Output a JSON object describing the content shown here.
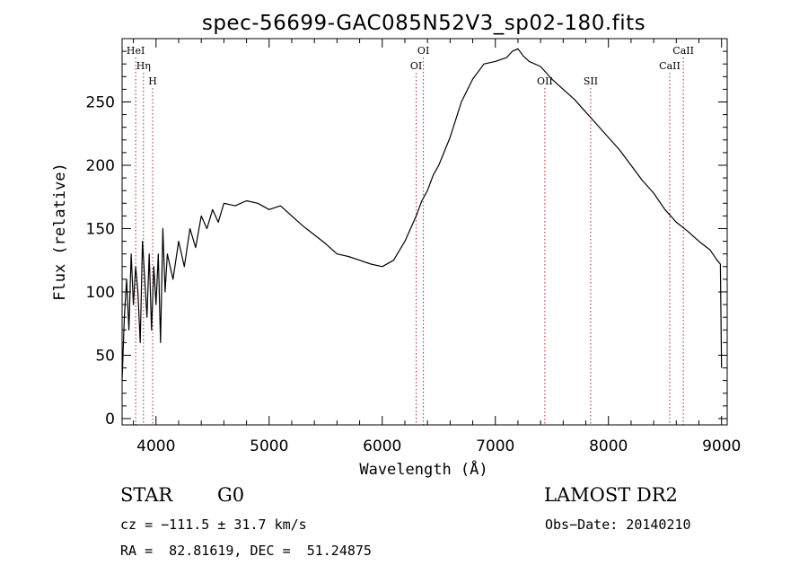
{
  "chart_data": {
    "type": "line",
    "title": "spec-56699-GAC085N52V3_sp02-180.fits",
    "xlabel": "Wavelength (Å)",
    "ylabel": "Flux (relative)",
    "xlim": [
      3700,
      9050
    ],
    "ylim": [
      -5,
      300
    ],
    "x_ticks": [
      4000,
      5000,
      6000,
      7000,
      8000,
      9000
    ],
    "y_ticks": [
      0,
      50,
      100,
      150,
      200,
      250
    ],
    "grid": false,
    "series": [
      {
        "x": [
          3700,
          3720,
          3740,
          3760,
          3780,
          3800,
          3820,
          3840,
          3860,
          3880,
          3900,
          3920,
          3940,
          3960,
          3980,
          4000,
          4020,
          4040,
          4060,
          4080,
          4100,
          4150,
          4200,
          4250,
          4300,
          4350,
          4400,
          4450,
          4500,
          4550,
          4600,
          4700,
          4800,
          4900,
          5000,
          5100,
          5200,
          5300,
          5400,
          5500,
          5600,
          5700,
          5800,
          5900,
          6000,
          6100,
          6200,
          6250,
          6300,
          6350,
          6400,
          6450,
          6500,
          6600,
          6700,
          6800,
          6900,
          7000,
          7100,
          7150,
          7200,
          7250,
          7300,
          7400,
          7500,
          7600,
          7700,
          7800,
          7900,
          8000,
          8100,
          8200,
          8300,
          8400,
          8500,
          8600,
          8700,
          8800,
          8900,
          8960,
          8990,
          9000
        ],
        "y": [
          30,
          80,
          110,
          70,
          130,
          90,
          120,
          100,
          60,
          140,
          110,
          80,
          130,
          70,
          120,
          90,
          130,
          60,
          150,
          100,
          130,
          110,
          140,
          120,
          150,
          135,
          160,
          150,
          165,
          155,
          170,
          168,
          172,
          170,
          165,
          168,
          160,
          152,
          145,
          138,
          130,
          128,
          125,
          122,
          120,
          125,
          140,
          150,
          160,
          172,
          180,
          192,
          200,
          222,
          250,
          268,
          280,
          282,
          285,
          290,
          292,
          286,
          282,
          278,
          268,
          260,
          252,
          242,
          232,
          222,
          212,
          200,
          188,
          178,
          165,
          155,
          148,
          140,
          133,
          125,
          122,
          40
        ]
      }
    ],
    "emission_lines": [
      {
        "label": "HeI",
        "x": 3820,
        "row": 1
      },
      {
        "label": "Hη",
        "x": 3889,
        "row": 2
      },
      {
        "label": "H",
        "x": 3970,
        "row": 3
      },
      {
        "label": "OI",
        "x": 6300,
        "row": 2
      },
      {
        "label": "OI",
        "x": 6364,
        "row": 1
      },
      {
        "label": "OII",
        "x": 7438,
        "row": 3
      },
      {
        "label": "SII",
        "x": 7843,
        "row": 3
      },
      {
        "label": "CaII",
        "x": 8542,
        "row": 2
      },
      {
        "label": "CaII",
        "x": 8662,
        "row": 1
      }
    ]
  },
  "footer": {
    "object_class": "STAR",
    "subclass": "G0",
    "survey": "LAMOST DR2",
    "cz": "cz = −111.5 ± 31.7 km/s",
    "obs_date": "Obs−Date: 20140210",
    "coords": "RA =  82.81619, DEC =  51.24875"
  }
}
